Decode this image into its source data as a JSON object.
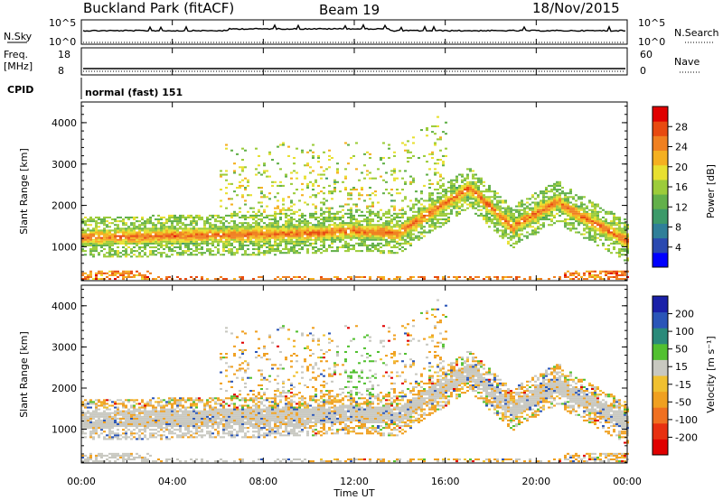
{
  "header": {
    "site": "Buckland Park (fitACF)",
    "beam": "Beam 19",
    "date": "18/Nov/2015"
  },
  "strips": {
    "nsky_label": "N.Sky",
    "nsearch_label": "N.Search",
    "noise_ticks_left": [
      "10^5",
      "10^0"
    ],
    "noise_ticks_right": [
      "10^5",
      "10^0"
    ],
    "freq_label": "Freq.",
    "freq_unit": "[MHz]",
    "freq_ticks": [
      "18",
      "8"
    ],
    "nave_label": "Nave",
    "nave_ticks": [
      "60",
      "0"
    ],
    "cpid_label": "CPID",
    "cpid_value": "normal (fast) 151"
  },
  "chart_data": [
    {
      "type": "heatmap",
      "name": "power",
      "ylabel": "Slant Range [km]",
      "ylim": [
        180,
        4500
      ],
      "yticks": [
        1000,
        2000,
        3000,
        4000
      ],
      "xlabel": "",
      "xticks": [
        "00:00",
        "04:00",
        "08:00",
        "12:00",
        "16:00",
        "20:00",
        "00:00"
      ],
      "xlim_hours": [
        0,
        24
      ],
      "colorbar": {
        "label": "Power [dB]",
        "ticks": [
          4,
          8,
          12,
          16,
          20,
          24,
          28
        ],
        "range": [
          0,
          30
        ],
        "colors": [
          "#0000ff",
          "#2a49b0",
          "#2f7f99",
          "#3c9a6a",
          "#62b04a",
          "#9ccc3a",
          "#e8e030",
          "#f5b020",
          "#f08020",
          "#e84a10",
          "#e00000"
        ]
      }
    },
    {
      "type": "heatmap",
      "name": "velocity",
      "ylabel": "Slant Range [km]",
      "ylim": [
        180,
        4500
      ],
      "yticks": [
        1000,
        2000,
        3000,
        4000
      ],
      "xlabel": "Time UT",
      "xticks": [
        "00:00",
        "04:00",
        "08:00",
        "12:00",
        "16:00",
        "20:00",
        "00:00"
      ],
      "xlim_hours": [
        0,
        24
      ],
      "colorbar": {
        "label": "Velocity [m s⁻¹]",
        "ticks": [
          "200",
          "100",
          "50",
          "15",
          "-15",
          "-50",
          "-100",
          "-200"
        ],
        "colors": [
          "#1a20a8",
          "#2a55b8",
          "#2a8a7a",
          "#52c030",
          "#c8c8c0",
          "#f0c030",
          "#f0a020",
          "#f07020",
          "#e83010",
          "#e00000"
        ]
      }
    }
  ]
}
